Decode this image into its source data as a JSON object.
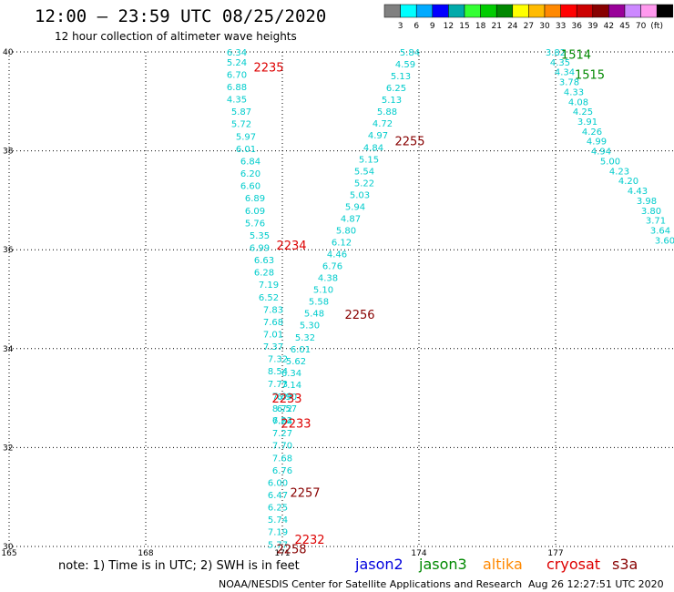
{
  "header": {
    "title": "12:00 — 23:59 UTC 08/25/2020",
    "subtitle": "12 hour collection of altimeter wave heights"
  },
  "colorbar": {
    "colors": [
      "#808080",
      "#00ffff",
      "#00aaff",
      "#0000ff",
      "#00aaaa",
      "#33ff33",
      "#00cc00",
      "#008800",
      "#ffff00",
      "#ffbb00",
      "#ff8800",
      "#ff0000",
      "#cc0000",
      "#880000",
      "#990099",
      "#cc88ff",
      "#ff99ee",
      "#000000"
    ],
    "ticks": [
      "3",
      "6",
      "9",
      "12",
      "15",
      "18",
      "21",
      "24",
      "27",
      "30",
      "33",
      "36",
      "39",
      "42",
      "45",
      "70",
      "(ft)"
    ]
  },
  "footer": {
    "note": "note:  1) Time is in UTC;  2) SWH is in feet",
    "satellites": [
      {
        "name": "jason2",
        "color": "#0000dd"
      },
      {
        "name": "jason3",
        "color": "#008800"
      },
      {
        "name": "altika",
        "color": "#ff8800"
      },
      {
        "name": "cryosat",
        "color": "#dd0000"
      },
      {
        "name": "s3a",
        "color": "#880000"
      }
    ],
    "credit": "NOAA/NESDIS Center for Satellite Applications and Research",
    "timestamp": "Aug 26 12:27:51 UTC 2020"
  },
  "chart_data": {
    "type": "scatter",
    "title": "12:00 — 23:59 UTC 08/25/2020",
    "xlabel": "",
    "ylabel": "",
    "xlim": [
      165,
      179.6
    ],
    "ylim": [
      30,
      40
    ],
    "x_ticks": [
      "165",
      "168",
      "171",
      "174",
      "177"
    ],
    "y_ticks": [
      "30",
      "32",
      "34",
      "36",
      "38",
      "40"
    ],
    "grid": true,
    "series": [
      {
        "color": "#00cccc",
        "x": [
          170.0,
          170.0,
          170.0,
          170.0,
          170.0,
          170.1,
          170.1,
          170.2,
          170.2,
          170.3,
          170.3,
          170.3,
          170.4,
          170.4,
          170.4,
          170.5,
          170.5,
          170.6,
          170.6,
          170.7,
          170.7,
          170.8,
          170.8,
          170.8,
          170.8,
          170.9,
          170.9,
          170.9,
          171.0,
          171.0,
          171.0,
          171.0,
          171.0,
          171.0,
          171.0,
          170.9,
          170.9,
          170.9,
          170.9,
          170.9,
          170.9
        ],
        "y": [
          40.0,
          39.8,
          39.55,
          39.3,
          39.05,
          38.8,
          38.55,
          38.3,
          38.05,
          37.8,
          37.55,
          37.3,
          37.05,
          36.8,
          36.55,
          36.3,
          36.05,
          35.8,
          35.55,
          35.3,
          35.05,
          34.8,
          34.55,
          34.3,
          34.05,
          33.8,
          33.55,
          33.3,
          33.05,
          32.8,
          32.55,
          32.3,
          32.05,
          31.8,
          31.55,
          31.3,
          31.05,
          30.8,
          30.55,
          30.3,
          30.05
        ],
        "labels": [
          "6.34",
          "5.24",
          "6.70",
          "6.88",
          "4.35",
          "5.87",
          "5.72",
          "5.97",
          "6.01",
          "6.84",
          "6.20",
          "6.60",
          "6.89",
          "6.09",
          "5.76",
          "5.35",
          "6.99",
          "6.63",
          "6.28",
          "7.19",
          "6.52",
          "7.83",
          "7.68",
          "7.01",
          "7.37",
          "7.32",
          "8.54",
          "7.73",
          "7.89",
          "8.72",
          "7.84",
          "7.27",
          "7.70",
          "7.68",
          "6.76",
          "6.00",
          "6.47",
          "6.25",
          "5.74",
          "7.19",
          "5.77"
        ]
      },
      {
        "color": "#00cccc",
        "x": [
          173.8,
          173.7,
          173.6,
          173.5,
          173.4,
          173.3,
          173.2,
          173.1,
          173.0,
          172.9,
          172.8,
          172.8,
          172.7,
          172.6,
          172.5,
          172.4,
          172.3,
          172.2,
          172.1,
          172.0,
          171.9,
          171.8,
          171.7,
          171.6,
          171.5,
          171.4,
          171.3,
          171.2,
          171.2,
          171.1,
          171.1,
          171.0
        ],
        "y": [
          40.0,
          39.76,
          39.52,
          39.28,
          39.04,
          38.8,
          38.56,
          38.32,
          38.08,
          37.84,
          37.6,
          37.36,
          37.12,
          36.88,
          36.64,
          36.4,
          36.16,
          35.92,
          35.68,
          35.44,
          35.2,
          34.96,
          34.72,
          34.48,
          34.24,
          34.0,
          33.76,
          33.52,
          33.28,
          33.04,
          32.8,
          32.56
        ],
        "labels": [
          "5.84",
          "4.59",
          "5.13",
          "6.25",
          "5.13",
          "5.88",
          "4.72",
          "4.97",
          "4.84",
          "5.15",
          "5.54",
          "5.22",
          "5.03",
          "5.94",
          "4.87",
          "5.80",
          "6.12",
          "4.46",
          "6.76",
          "4.38",
          "5.10",
          "5.58",
          "5.48",
          "5.30",
          "5.32",
          "6.01",
          "5.62",
          "6.34",
          "7.14",
          "6.90",
          "6.57",
          "6.22"
        ]
      },
      {
        "color": "#00cccc",
        "x": [
          177.0,
          177.1,
          177.2,
          177.3,
          177.4,
          177.5,
          177.6,
          177.7,
          177.8,
          177.9,
          178.0,
          178.2,
          178.4,
          178.6,
          178.8,
          179.0,
          179.1,
          179.2,
          179.3,
          179.4
        ],
        "y": [
          40.0,
          39.8,
          39.6,
          39.4,
          39.2,
          39.0,
          38.8,
          38.6,
          38.4,
          38.2,
          38.0,
          37.8,
          37.6,
          37.4,
          37.2,
          37.0,
          36.8,
          36.6,
          36.4,
          36.2
        ],
        "labels": [
          "3.82",
          "4.35",
          "4.34",
          "3.78",
          "4.33",
          "4.08",
          "4.25",
          "3.91",
          "4.26",
          "4.99",
          "4.94",
          "5.00",
          "4.23",
          "4.20",
          "4.43",
          "3.98",
          "3.80",
          "3.71",
          "3.64",
          "3.60"
        ]
      }
    ],
    "time_labels": [
      {
        "text": "2235",
        "x": 170.7,
        "y": 39.7,
        "color": "#dd0000"
      },
      {
        "text": "2255",
        "x": 173.8,
        "y": 38.2,
        "color": "#880000"
      },
      {
        "text": "2234",
        "x": 171.2,
        "y": 36.1,
        "color": "#dd0000"
      },
      {
        "text": "2256",
        "x": 172.7,
        "y": 34.7,
        "color": "#880000"
      },
      {
        "text": "2233",
        "x": 171.1,
        "y": 33.0,
        "color": "#dd0000"
      },
      {
        "text": "2233",
        "x": 171.3,
        "y": 32.5,
        "color": "#dd0000"
      },
      {
        "text": "2257",
        "x": 171.5,
        "y": 31.1,
        "color": "#880000"
      },
      {
        "text": "2232",
        "x": 171.6,
        "y": 30.15,
        "color": "#dd0000"
      },
      {
        "text": "2258",
        "x": 171.2,
        "y": 29.95,
        "color": "#880000"
      },
      {
        "text": "1514",
        "x": 177.45,
        "y": 39.95,
        "color": "#008800"
      },
      {
        "text": "1515",
        "x": 177.75,
        "y": 39.55,
        "color": "#008800"
      }
    ]
  }
}
